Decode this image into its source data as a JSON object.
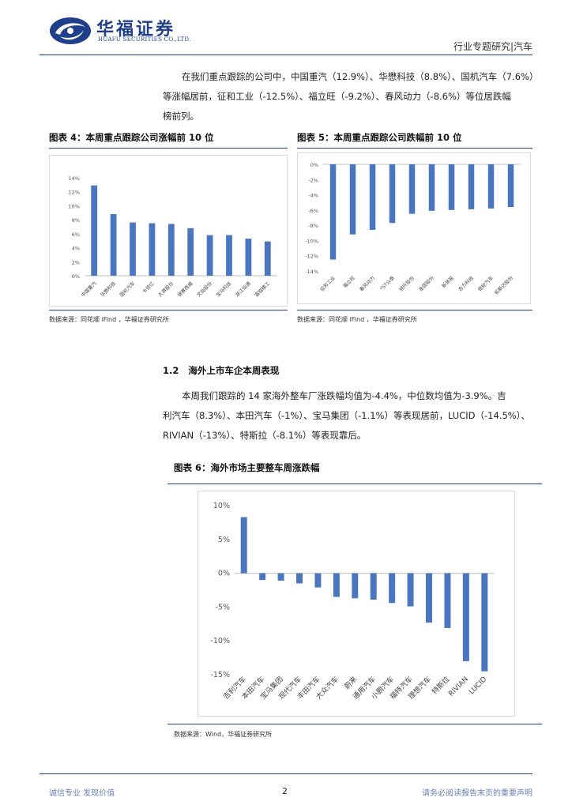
{
  "header": {
    "logo_cn": "华福证券",
    "logo_en": "HUAFU SECURITIES CO.,LTD.",
    "right_text": "行业专题研究|汽车"
  },
  "intro_paragraph": [
    "在我们重点跟踪的公司中，中国重汽（12.9%）、华懋科技（8.8%）、国机汽车（7.6%）",
    "等涨幅居前，征和工业（-12.5%）、福立旺（-9.2%）、春风动力（-8.6%）等位居跌幅",
    "榜前列。"
  ],
  "fig4": {
    "title": "图表 4：本周重点跟踪公司涨幅前 10 位",
    "source": "数据来源：同花顺 iFind ，华福证券研究所"
  },
  "fig5": {
    "title": "图表 5：本周重点跟踪公司跌幅前 10 位",
    "source": "数据来源：同花顺 iFind ，华福证券研究所"
  },
  "section": {
    "number": "1.2",
    "title": "海外上市车企本周表现"
  },
  "section_paragraph": [
    "本周我们跟踪的 14 家海外整车厂涨跌幅均值为-4.4%，中位数均值为-3.9%。吉",
    "利汽车（8.3%）、本田汽车（-1%）、宝马集团（-1.1%）等表现居前，LUCID（-14.5%）、",
    "RIVIAN（-13%）、特斯拉（-8.1%）等表现靠后。"
  ],
  "fig6": {
    "title": "图表 6：海外市场主要整车周涨跌幅",
    "source": "数据来源：Wind，华福证券研究所"
  },
  "footer": {
    "left": "诚信专业  发现价值",
    "page": "2",
    "right": "请务必阅读报告末页的重要声明"
  },
  "colors": {
    "bar": "#4a76c0",
    "brand": "#1f3f8a"
  },
  "chart_data": [
    {
      "type": "bar",
      "categories": [
        "中国重汽",
        "华懋科技",
        "国机汽车",
        "卡倍亿",
        "久祺股份",
        "德赛西威",
        "文灿股份",
        "宝马科技",
        "浙江仙通",
        "富临精工"
      ],
      "values": [
        12.9,
        8.8,
        7.6,
        7.5,
        7.4,
        6.8,
        5.8,
        5.8,
        5.3,
        4.9
      ],
      "yticks": [
        "0%",
        "2%",
        "4%",
        "6%",
        "8%",
        "10%",
        "12%",
        "14%"
      ],
      "ylim": [
        0,
        14
      ]
    },
    {
      "type": "bar",
      "categories": [
        "征和工业",
        "福立旺",
        "春风动力",
        "*ST众泰",
        "旭升股份",
        "金固股份",
        "新泉股",
        "合力科技",
        "银轮汽车",
        "拓斯达股份"
      ],
      "values": [
        -12.5,
        -9.2,
        -8.6,
        -7.7,
        -6.5,
        -6.1,
        -6.0,
        -5.9,
        -5.8,
        -5.6
      ],
      "yticks": [
        "0%",
        "-2%",
        "-4%",
        "-6%",
        "-8%",
        "-10%",
        "-12%",
        "-14%"
      ],
      "ylim": [
        -14,
        0
      ]
    },
    {
      "type": "bar",
      "categories": [
        "吉利汽车",
        "本田汽车",
        "宝马集团",
        "现代汽车",
        "丰田汽车",
        "大众汽车",
        "蔚来",
        "通用汽车",
        "小鹏汽车",
        "福特汽车",
        "理想汽车",
        "特斯拉",
        "RIVIAN",
        "LUCID"
      ],
      "values": [
        8.3,
        -1.0,
        -1.1,
        -1.5,
        -2.1,
        -3.5,
        -3.7,
        -3.9,
        -4.4,
        -4.9,
        -7.3,
        -8.1,
        -13.0,
        -14.5
      ],
      "yticks": [
        "10%",
        "5%",
        "0%",
        "-5%",
        "-10%",
        "-15%"
      ],
      "ylim": [
        -15,
        10
      ]
    }
  ]
}
